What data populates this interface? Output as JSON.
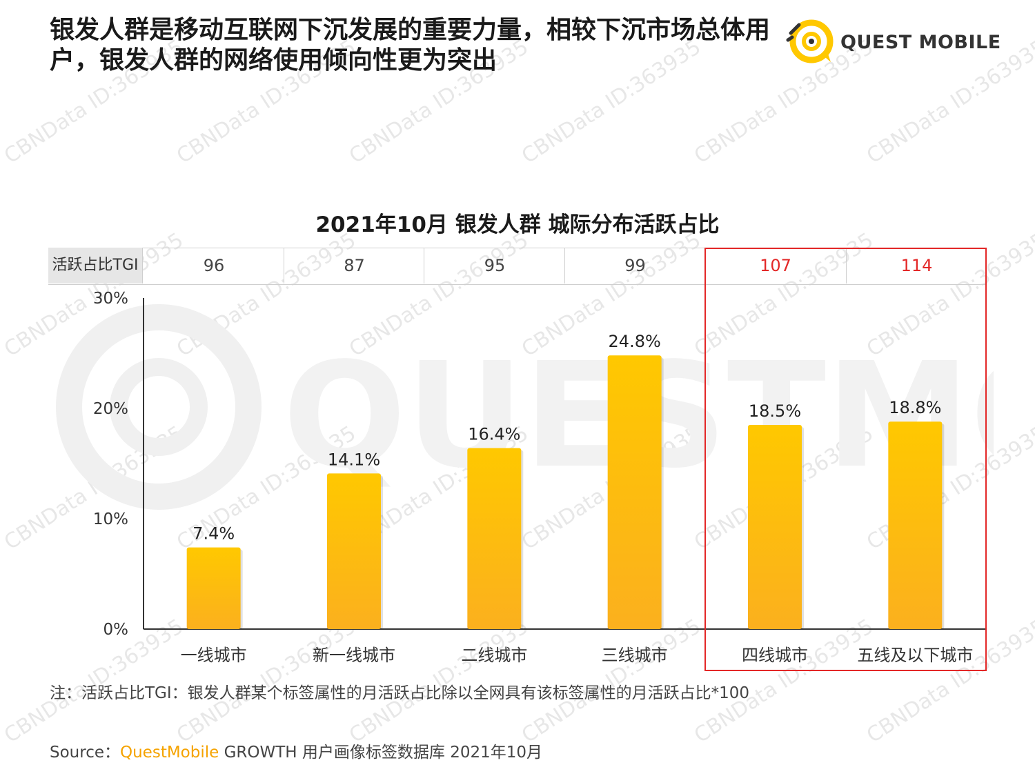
{
  "header": {
    "headline": "银发人群是移动互联网下沉发展的重要力量，相较下沉市场总体用户，银发人群的网络使用倾向性更为突出",
    "brand": "QUEST MOBILE"
  },
  "tgi": {
    "label": "活跃占比TGI",
    "values": [
      "96",
      "87",
      "95",
      "99",
      "107",
      "114"
    ],
    "highlight_from_index": 4,
    "normal_color": "#444444",
    "highlight_color": "#e32727"
  },
  "chart_data": {
    "type": "bar",
    "title": "2021年10月 银发人群 城际分布活跃占比",
    "categories": [
      "一线城市",
      "新一线城市",
      "二线城市",
      "三线城市",
      "四线城市",
      "五线及以下城市"
    ],
    "values": [
      7.4,
      14.1,
      16.4,
      24.8,
      18.5,
      18.8
    ],
    "value_labels": [
      "7.4%",
      "14.1%",
      "16.4%",
      "24.8%",
      "18.5%",
      "18.8%"
    ],
    "ylim": [
      0,
      30
    ],
    "yticks": [
      "0%",
      "10%",
      "20%",
      "30%"
    ],
    "xlabel": "",
    "ylabel": "",
    "grid": false,
    "bar_color_top": "#ffc800",
    "bar_color_bottom": "#fbb01e"
  },
  "note": "注：活跃占比TGI：银发人群某个标签属性的月活跃占比除以全网具有该标签属性的月活跃占比*100",
  "source": {
    "prefix": "Source：",
    "brand": "QuestMobile",
    "rest": " GROWTH 用户画像标签数据库 2021年10月"
  },
  "watermark": {
    "text": "CBNData ID:363935"
  }
}
